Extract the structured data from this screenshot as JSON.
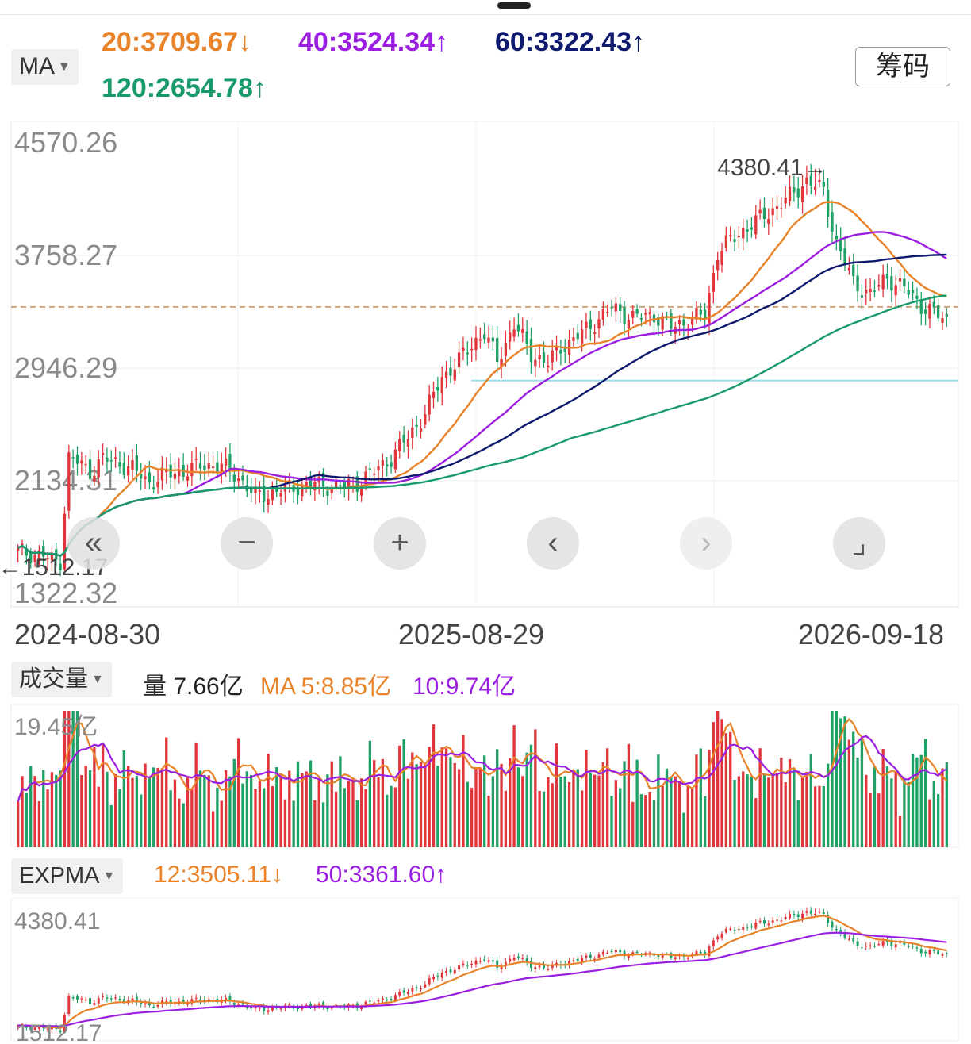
{
  "header": {
    "ma_selector": "MA",
    "ma": [
      {
        "label": "20:3709.67",
        "arrow": "↓",
        "color": "#e8832a"
      },
      {
        "label": "40:3524.34",
        "arrow": "↑",
        "color": "#9b1fe0"
      },
      {
        "label": "60:3322.43",
        "arrow": "↑",
        "color": "#0f1a6e"
      },
      {
        "label": "120:2654.78",
        "arrow": "↑",
        "color": "#1a9a6a"
      }
    ],
    "chip_button": "筹码"
  },
  "controls": [
    {
      "name": "jump-back-icon",
      "glyph": "«"
    },
    {
      "name": "zoom-out-icon",
      "glyph": "−"
    },
    {
      "name": "zoom-in-icon",
      "glyph": "+"
    },
    {
      "name": "prev-icon",
      "glyph": "‹"
    },
    {
      "name": "next-icon",
      "glyph": "›"
    },
    {
      "name": "fullscreen-icon",
      "glyph": "⌟"
    }
  ],
  "volume_header": {
    "selector": "成交量",
    "vol": "量 7.66亿",
    "ma5": "MA 5:8.85亿",
    "ma10": "10:9.74亿"
  },
  "expma_header": {
    "selector": "EXPMA",
    "e12": "12:3505.11",
    "e12_arrow": "↓",
    "e50": "50:3361.60",
    "e50_arrow": "↑"
  },
  "colors": {
    "up": "#e0353a",
    "down": "#1fa065",
    "ma20": "#e8832a",
    "ma40": "#9b1fe0",
    "ma60": "#0f1a6e",
    "ma120": "#1a9a6a",
    "ref_line": "#c9a27e",
    "support_line": "#9fdcea"
  },
  "chart_data": [
    {
      "type": "candlestick",
      "y_ticks": [
        "4570.26",
        "3758.27",
        "2946.29",
        "2134.31",
        "1322.32"
      ],
      "ylim": [
        1322.32,
        4570.26
      ],
      "x_labels": [
        "2024-08-30",
        "2025-08-29",
        "2026-09-18"
      ],
      "max_annotation": "4380.41→",
      "min_annotation": "←1512.17",
      "max_value": 4380.41,
      "min_value": 1512.17,
      "reference_level": 3387,
      "support_level": 2856,
      "series": [
        {
          "name": "20",
          "color": "#e8832a"
        },
        {
          "name": "40",
          "color": "#9b1fe0"
        },
        {
          "name": "60",
          "color": "#0f1a6e"
        },
        {
          "name": "120",
          "color": "#1a9a6a"
        }
      ]
    },
    {
      "type": "bar",
      "y_tick": "19.45亿",
      "ylim": [
        0,
        19.45
      ],
      "series": [
        {
          "name": "MA 5",
          "color": "#e8832a"
        },
        {
          "name": "10",
          "color": "#9b1fe0"
        }
      ]
    },
    {
      "type": "candlestick",
      "y_ticks": [
        "4380.41",
        "1512.17"
      ],
      "ylim": [
        1512.17,
        4380.41
      ],
      "series": [
        {
          "name": "12",
          "color": "#e8832a"
        },
        {
          "name": "50",
          "color": "#9b1fe0"
        }
      ]
    }
  ]
}
